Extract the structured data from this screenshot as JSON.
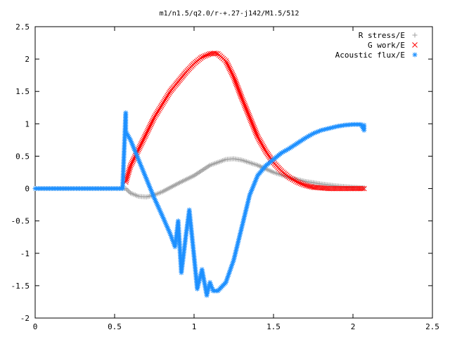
{
  "chart_data": {
    "type": "scatter",
    "title": "m1/n1.5/q2.0/r-+.27-j142/M1.5/512",
    "xlabel": "",
    "ylabel": "",
    "xlim": [
      0,
      2.5
    ],
    "ylim": [
      -2,
      2.5
    ],
    "x_ticks": [
      "0",
      "0.5",
      "1",
      "1.5",
      "2",
      "2.5"
    ],
    "y_ticks": [
      "-2",
      "-1.5",
      "-1",
      "-0.5",
      "0",
      "0.5",
      "1",
      "1.5",
      "2",
      "2.5"
    ],
    "grid": false,
    "legend_position": "top-right",
    "series": [
      {
        "name": "R stress/E",
        "marker": "+",
        "color": "#a0a0a0",
        "x": [
          0,
          0.1,
          0.2,
          0.3,
          0.4,
          0.5,
          0.57,
          0.6,
          0.65,
          0.7,
          0.75,
          0.8,
          0.9,
          1.0,
          1.1,
          1.2,
          1.25,
          1.3,
          1.4,
          1.5,
          1.6,
          1.7,
          1.8,
          1.9,
          2.0,
          2.07
        ],
        "y": [
          0,
          0,
          0,
          0,
          0,
          0,
          0.0,
          -0.07,
          -0.12,
          -0.13,
          -0.1,
          -0.05,
          0.08,
          0.2,
          0.36,
          0.45,
          0.46,
          0.44,
          0.36,
          0.25,
          0.17,
          0.11,
          0.07,
          0.04,
          0.02,
          0.01
        ]
      },
      {
        "name": "G work/E",
        "marker": "x",
        "color": "#ff0000",
        "x": [
          0.57,
          0.6,
          0.65,
          0.7,
          0.75,
          0.8,
          0.85,
          0.9,
          0.95,
          1.0,
          1.05,
          1.1,
          1.13,
          1.15,
          1.2,
          1.25,
          1.3,
          1.35,
          1.4,
          1.45,
          1.5,
          1.55,
          1.6,
          1.65,
          1.7,
          1.75,
          1.8,
          1.85,
          1.9,
          2.0,
          2.07
        ],
        "y": [
          0.1,
          0.35,
          0.6,
          0.85,
          1.1,
          1.3,
          1.5,
          1.65,
          1.8,
          1.93,
          2.03,
          2.08,
          2.09,
          2.08,
          1.97,
          1.72,
          1.4,
          1.1,
          0.8,
          0.58,
          0.4,
          0.27,
          0.17,
          0.1,
          0.05,
          0.02,
          0.01,
          0.0,
          0.0,
          0.0,
          0.0
        ]
      },
      {
        "name": "Acoustic flux/E",
        "marker": "*",
        "color": "#1e90ff",
        "x": [
          0,
          0.1,
          0.2,
          0.3,
          0.4,
          0.5,
          0.55,
          0.57,
          0.57,
          0.57,
          0.6,
          0.65,
          0.7,
          0.75,
          0.8,
          0.85,
          0.88,
          0.9,
          0.92,
          0.95,
          0.97,
          1.0,
          1.02,
          1.05,
          1.08,
          1.1,
          1.12,
          1.15,
          1.2,
          1.25,
          1.3,
          1.35,
          1.4,
          1.45,
          1.5,
          1.55,
          1.6,
          1.65,
          1.7,
          1.75,
          1.8,
          1.85,
          1.9,
          1.95,
          2.0,
          2.05,
          2.07,
          2.07
        ],
        "y": [
          0,
          0,
          0,
          0,
          0,
          0,
          0,
          1.17,
          1.12,
          0.88,
          0.75,
          0.45,
          0.15,
          -0.15,
          -0.42,
          -0.7,
          -0.9,
          -0.5,
          -1.3,
          -0.7,
          -0.33,
          -1.05,
          -1.55,
          -1.25,
          -1.65,
          -1.45,
          -1.58,
          -1.58,
          -1.45,
          -1.1,
          -0.6,
          -0.1,
          0.2,
          0.35,
          0.45,
          0.55,
          0.62,
          0.7,
          0.78,
          0.85,
          0.9,
          0.93,
          0.96,
          0.98,
          0.99,
          0.99,
          0.9,
          0.98
        ]
      }
    ]
  }
}
